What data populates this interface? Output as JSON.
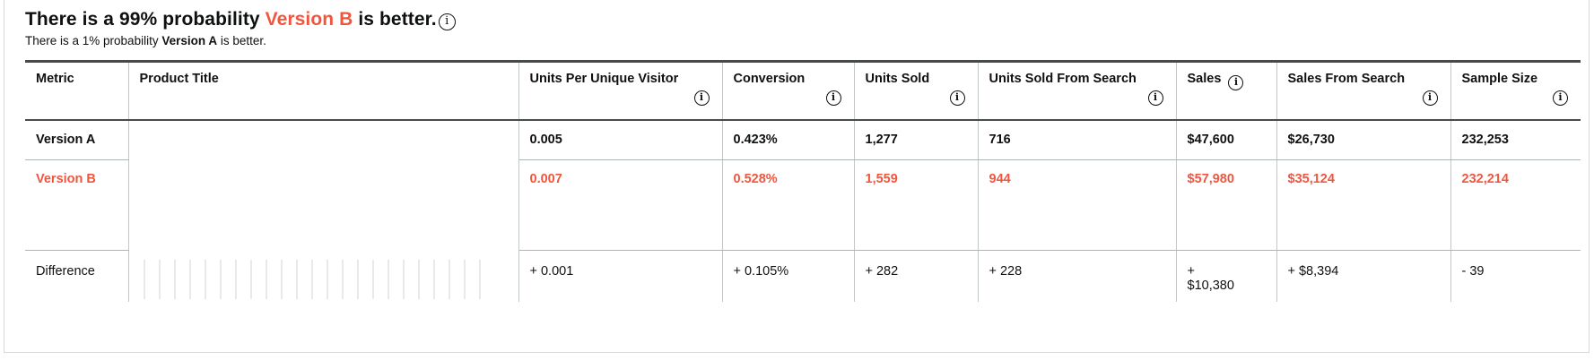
{
  "colors": {
    "accent_orange": "#F0553D",
    "text_dark": "#0F1111",
    "header_border_dark": "#454b4d",
    "row_border_light": "#adb5b5"
  },
  "icons": {
    "info_glyph": "i"
  },
  "header": {
    "headline_prefix": "There is a 99% probability ",
    "headline_highlight": "Version B",
    "headline_suffix": " is better.",
    "subline_prefix": "There is a 1% probability ",
    "subline_bold": "Version A",
    "subline_suffix": " is better."
  },
  "table": {
    "columns": [
      {
        "label": "Metric",
        "has_info": false
      },
      {
        "label": "Product Title",
        "has_info": false
      },
      {
        "label": "Units Per Unique Visitor",
        "has_info": true
      },
      {
        "label": "Conversion",
        "has_info": true
      },
      {
        "label": "Units Sold",
        "has_info": true
      },
      {
        "label": "Units Sold From Search",
        "has_info": true
      },
      {
        "label": "Sales",
        "has_info": true,
        "icon_inline": true
      },
      {
        "label": "Sales From Search",
        "has_info": true
      },
      {
        "label": "Sample Size",
        "has_info": true
      }
    ],
    "rows": [
      {
        "metric": "Version A",
        "style": "version-a",
        "product_title": "",
        "values": [
          "0.005",
          "0.423%",
          "1,277",
          "716",
          "$47,600",
          "$26,730",
          "232,253"
        ]
      },
      {
        "metric": "Version B",
        "style": "version-b",
        "product_title": "",
        "values": [
          "0.007",
          "0.528%",
          "1,559",
          "944",
          "$57,980",
          "$35,124",
          "232,214"
        ]
      },
      {
        "metric": "Difference",
        "style": "difference",
        "product_title": "",
        "values": [
          "+ 0.001",
          "+ 0.105%",
          "+ 282",
          "+ 228",
          "+ $10,380",
          "+ $8,394",
          "- 39"
        ]
      }
    ]
  }
}
